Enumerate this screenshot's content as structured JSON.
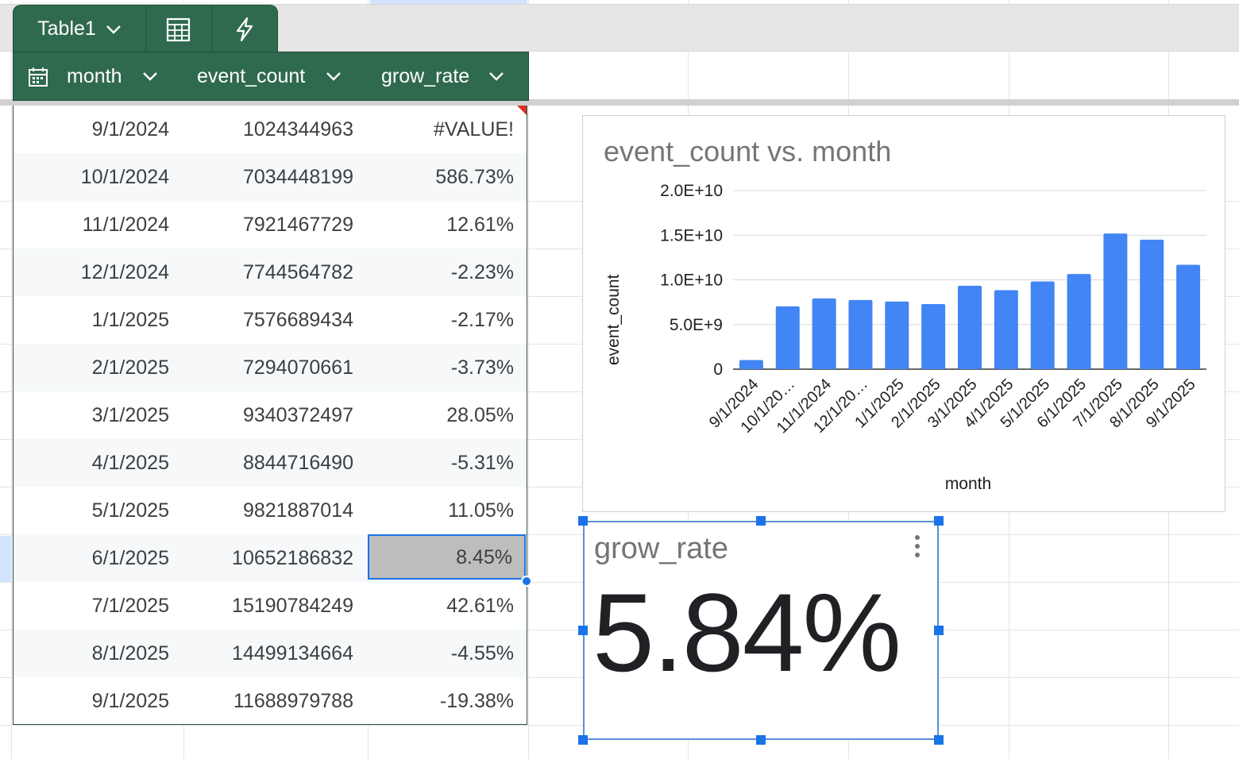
{
  "table": {
    "name": "Table1",
    "columns": [
      "month",
      "event_count",
      "grow_rate"
    ],
    "rows": [
      [
        "9/1/2024",
        "1024344963",
        "#VALUE!"
      ],
      [
        "10/1/2024",
        "7034448199",
        "586.73%"
      ],
      [
        "11/1/2024",
        "7921467729",
        "12.61%"
      ],
      [
        "12/1/2024",
        "7744564782",
        "-2.23%"
      ],
      [
        "1/1/2025",
        "7576689434",
        "-2.17%"
      ],
      [
        "2/1/2025",
        "7294070661",
        "-3.73%"
      ],
      [
        "3/1/2025",
        "9340372497",
        "28.05%"
      ],
      [
        "4/1/2025",
        "8844716490",
        "-5.31%"
      ],
      [
        "5/1/2025",
        "9821887014",
        "11.05%"
      ],
      [
        "6/1/2025",
        "10652186832",
        "8.45%"
      ],
      [
        "7/1/2025",
        "15190784249",
        "42.61%"
      ],
      [
        "8/1/2025",
        "14499134664",
        "-4.55%"
      ],
      [
        "9/1/2025",
        "11688979788",
        "-19.38%"
      ]
    ],
    "selected_cell_value": "8.45%",
    "icons": [
      "chevron-down-icon",
      "calculator-icon",
      "lightning-icon",
      "calendar-icon"
    ],
    "header_color": "#306a4e"
  },
  "chart_data": {
    "type": "bar",
    "title": "event_count vs. month",
    "xlabel": "month",
    "ylabel": "event_count",
    "categories": [
      "9/1/2024",
      "10/1/20…",
      "11/1/2024",
      "12/1/20…",
      "1/1/2025",
      "2/1/2025",
      "3/1/2025",
      "4/1/2025",
      "5/1/2025",
      "6/1/2025",
      "7/1/2025",
      "8/1/2025",
      "9/1/2025"
    ],
    "values": [
      1024344963,
      7034448199,
      7921467729,
      7744564782,
      7576689434,
      7294070661,
      9340372497,
      8844716490,
      9821887014,
      10652186832,
      15190784249,
      14499134664,
      11688979788
    ],
    "y_ticks": [
      {
        "value": 0,
        "label": "0"
      },
      {
        "value": 5000000000,
        "label": "5.0E+9"
      },
      {
        "value": 10000000000,
        "label": "1.0E+10"
      },
      {
        "value": 15000000000,
        "label": "1.5E+10"
      },
      {
        "value": 20000000000,
        "label": "2.0E+10"
      }
    ],
    "ylim": [
      0,
      20000000000
    ],
    "grid": true,
    "legend": "none",
    "bar_color": "#4285f4"
  },
  "scorecard": {
    "title": "grow_rate",
    "value": "5.84%"
  }
}
